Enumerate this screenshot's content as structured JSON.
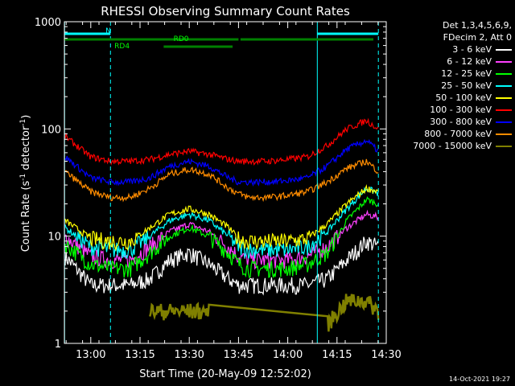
{
  "chart_data": {
    "type": "line",
    "title": "RHESSI Observing Summary Count Rates",
    "xlabel": "Start Time (20-May-09 12:52:02)",
    "ylabel": "Count Rate (s",
    "ylabel_sup1": "-1",
    "ylabel_mid": " detector",
    "ylabel_sup2": "-1",
    "ylabel_end": ")",
    "yscale": "log",
    "ylim": [
      1,
      1000
    ],
    "xlim_minutes": [
      12.866,
      14.5
    ],
    "y_ticks": [
      "1",
      "10",
      "100",
      "1000"
    ],
    "x_ticks": [
      {
        "label": "13:00",
        "t": 13.0
      },
      {
        "label": "13:15",
        "t": 13.25
      },
      {
        "label": "13:30",
        "t": 13.5
      },
      {
        "label": "13:45",
        "t": 13.75
      },
      {
        "label": "14:00",
        "t": 14.0
      },
      {
        "label": "14:15",
        "t": 14.25
      },
      {
        "label": "14:30",
        "t": 14.5
      }
    ],
    "x_values_hours": [
      12.87,
      13.0,
      13.1,
      13.2,
      13.3,
      13.4,
      13.5,
      13.6,
      13.7,
      13.75,
      13.8,
      13.9,
      14.0,
      14.1,
      14.2,
      14.3,
      14.4,
      14.46
    ],
    "series": [
      {
        "name": "3 - 6 keV",
        "color": "#ffffff",
        "values": [
          6.5,
          3.5,
          3.5,
          3.5,
          4,
          6,
          7,
          5.5,
          4,
          3.5,
          3.5,
          3.5,
          3.5,
          3.5,
          4,
          6,
          9,
          8
        ]
      },
      {
        "name": "6 - 12 keV",
        "color": "#ff40ff",
        "values": [
          10,
          6.5,
          6,
          6,
          8,
          11,
          13,
          11,
          8,
          6.5,
          6,
          6,
          6,
          6.5,
          8,
          12,
          16,
          15
        ]
      },
      {
        "name": "12 - 25 keV",
        "color": "#00ff00",
        "values": [
          8.5,
          5.5,
          5,
          5,
          7,
          10,
          12,
          10,
          7,
          5.5,
          5,
          5,
          5,
          5.5,
          7,
          14,
          22,
          20
        ]
      },
      {
        "name": "25 - 50 keV",
        "color": "#00ffff",
        "values": [
          12,
          8,
          7.5,
          7.5,
          10,
          14,
          16,
          14,
          10,
          8,
          7.5,
          7.5,
          7.5,
          8,
          11,
          18,
          28,
          25
        ]
      },
      {
        "name": "50 - 100 keV",
        "color": "#ffff00",
        "values": [
          14,
          9.5,
          9,
          9,
          12,
          16,
          18,
          16,
          12,
          9.5,
          9,
          9,
          9,
          9.5,
          13,
          20,
          28,
          26
        ]
      },
      {
        "name": "100 - 300 keV",
        "color": "#ff0000",
        "values": [
          85,
          55,
          50,
          50,
          52,
          58,
          62,
          58,
          52,
          50,
          50,
          50,
          52,
          55,
          70,
          100,
          120,
          100
        ]
      },
      {
        "name": "300 - 800 keV",
        "color": "#0000ff",
        "values": [
          55,
          35,
          32,
          32,
          35,
          45,
          50,
          45,
          35,
          32,
          32,
          32,
          33,
          35,
          45,
          65,
          78,
          62
        ]
      },
      {
        "name": "800 - 7000 keV",
        "color": "#ff8c00",
        "values": [
          40,
          26,
          23,
          23,
          28,
          38,
          42,
          38,
          28,
          25,
          23,
          23,
          24,
          26,
          32,
          43,
          50,
          40
        ]
      },
      {
        "name": "7000 - 15000 keV",
        "color": "#808000",
        "values": [
          null,
          null,
          null,
          null,
          2,
          2,
          2,
          2,
          null,
          null,
          null,
          null,
          null,
          null,
          1.5,
          2.5,
          2.5,
          2
        ]
      }
    ],
    "legend_header": [
      "Det 1,3,4,5,6,9,",
      "FDecim 2, Att 0"
    ],
    "flags": {
      "N_label": "N",
      "RD0_label": "RD0",
      "RD4_label": "RD4",
      "night_color": "#00ffff",
      "flag_color": "#008000"
    },
    "timestamp": "14-Oct-2021 19:27"
  }
}
